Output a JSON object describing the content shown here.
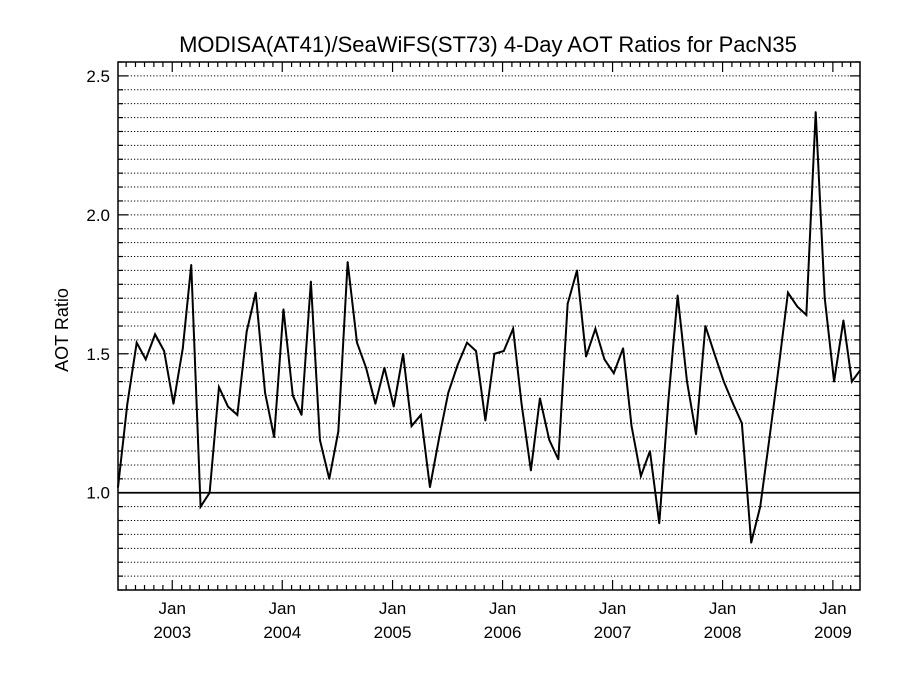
{
  "chart_data": {
    "type": "line",
    "title": "MODISA(AT41)/SeaWiFS(ST73) 4-Day AOT Ratios for PacN35",
    "ylabel": "AOT Ratio",
    "xlabel": "",
    "xlim": [
      "2002-07-05",
      "2009-04-01"
    ],
    "ylim": [
      0.65,
      2.55
    ],
    "yticks": [
      1.0,
      1.5,
      2.0,
      2.5
    ],
    "ytick_labels": [
      "1.0",
      "1.5",
      "2.0",
      "2.5"
    ],
    "xticks": [
      {
        "date": "2003-01-01",
        "month": "Jan",
        "year": "2003"
      },
      {
        "date": "2004-01-01",
        "month": "Jan",
        "year": "2004"
      },
      {
        "date": "2005-01-01",
        "month": "Jan",
        "year": "2005"
      },
      {
        "date": "2006-01-01",
        "month": "Jan",
        "year": "2006"
      },
      {
        "date": "2007-01-01",
        "month": "Jan",
        "year": "2007"
      },
      {
        "date": "2008-01-01",
        "month": "Jan",
        "year": "2008"
      },
      {
        "date": "2009-01-01",
        "month": "Jan",
        "year": "2009"
      }
    ],
    "grid": "horizontal dotted every 0.05",
    "reference_line": 1.0,
    "series": [
      {
        "color": "#000000",
        "x": [
          "2002-07-05",
          "2002-08-05",
          "2002-09-05",
          "2002-10-05",
          "2002-11-05",
          "2002-12-05",
          "2003-01-05",
          "2003-02-05",
          "2003-03-05",
          "2003-04-05",
          "2003-05-05",
          "2003-06-05",
          "2003-07-05",
          "2003-08-05",
          "2003-09-05",
          "2003-10-05",
          "2003-11-05",
          "2003-12-05",
          "2004-01-05",
          "2004-02-05",
          "2004-03-05",
          "2004-04-05",
          "2004-05-05",
          "2004-06-05",
          "2004-07-05",
          "2004-08-05",
          "2004-09-05",
          "2004-10-05",
          "2004-11-05",
          "2004-12-05",
          "2005-01-05",
          "2005-02-05",
          "2005-03-05",
          "2005-04-05",
          "2005-05-05",
          "2005-06-05",
          "2005-07-05",
          "2005-08-05",
          "2005-09-05",
          "2005-10-05",
          "2005-11-05",
          "2005-12-05",
          "2006-01-05",
          "2006-02-05",
          "2006-03-05",
          "2006-04-05",
          "2006-05-05",
          "2006-06-05",
          "2006-07-05",
          "2006-08-05",
          "2006-09-05",
          "2006-10-05",
          "2006-11-05",
          "2006-12-05",
          "2007-01-05",
          "2007-02-05",
          "2007-03-05",
          "2007-04-05",
          "2007-05-05",
          "2007-06-05",
          "2007-07-05",
          "2007-08-05",
          "2007-09-05",
          "2007-10-05",
          "2007-11-05",
          "2007-12-05",
          "2008-01-05",
          "2008-02-05",
          "2008-03-05",
          "2008-04-05",
          "2008-05-05",
          "2008-06-05",
          "2008-07-05",
          "2008-08-05",
          "2008-09-05",
          "2008-10-05",
          "2008-11-05",
          "2008-12-05",
          "2009-01-05",
          "2009-02-05",
          "2009-03-05",
          "2009-04-01"
        ],
        "values": [
          1.02,
          1.32,
          1.54,
          1.48,
          1.57,
          1.51,
          1.32,
          1.52,
          1.82,
          0.95,
          1.0,
          1.38,
          1.31,
          1.28,
          1.58,
          1.72,
          1.36,
          1.2,
          1.66,
          1.35,
          1.28,
          1.76,
          1.19,
          1.05,
          1.22,
          1.83,
          1.54,
          1.45,
          1.32,
          1.45,
          1.31,
          1.5,
          1.24,
          1.28,
          1.02,
          1.2,
          1.36,
          1.46,
          1.54,
          1.51,
          1.26,
          1.5,
          1.51,
          1.59,
          1.32,
          1.08,
          1.34,
          1.19,
          1.12,
          1.68,
          1.8,
          1.49,
          1.59,
          1.48,
          1.43,
          1.52,
          1.24,
          1.06,
          1.15,
          0.89,
          1.33,
          1.71,
          1.4,
          1.21,
          1.6,
          1.5,
          1.4,
          1.32,
          1.25,
          0.82,
          0.95,
          1.2,
          1.45,
          1.72,
          1.67,
          1.64,
          2.37,
          1.7,
          1.4,
          1.62,
          1.4,
          1.44
        ]
      }
    ]
  }
}
